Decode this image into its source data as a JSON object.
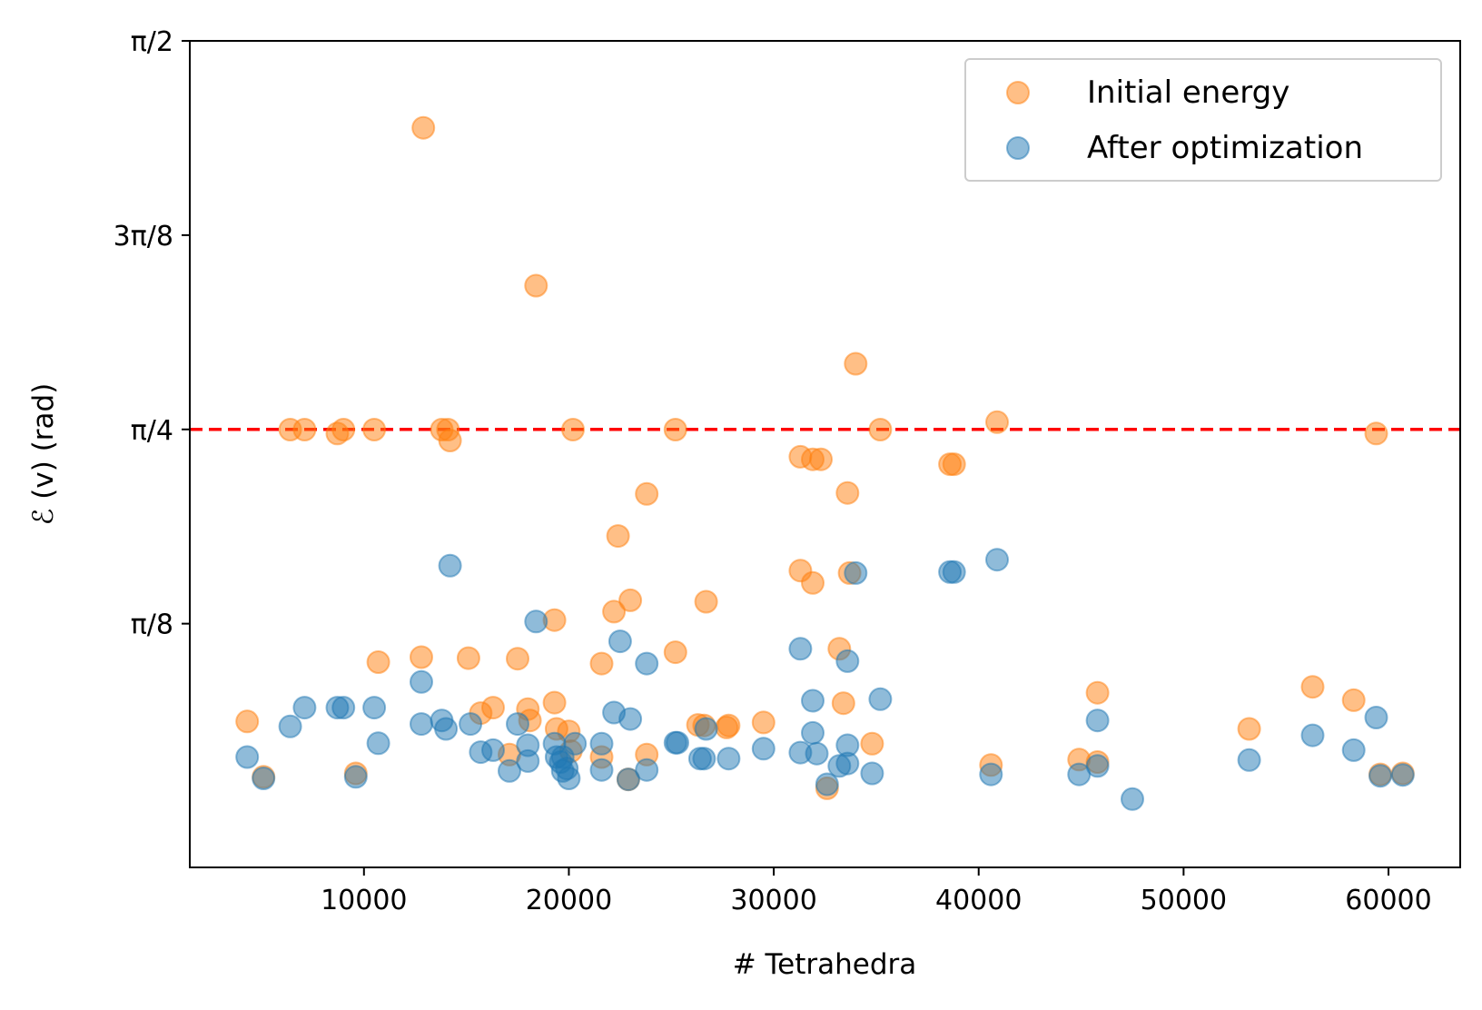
{
  "chart_data": {
    "type": "scatter",
    "title": "",
    "xlabel": "# Tetrahedra",
    "ylabel": "ℰ (v) (rad)",
    "xlim": [
      1500,
      63500
    ],
    "ylim": [
      -0.1,
      1.5708
    ],
    "x_ticks": [
      {
        "value": 10000,
        "label": "10000"
      },
      {
        "value": 20000,
        "label": "20000"
      },
      {
        "value": 30000,
        "label": "30000"
      },
      {
        "value": 40000,
        "label": "40000"
      },
      {
        "value": 50000,
        "label": "50000"
      },
      {
        "value": 60000,
        "label": "60000"
      }
    ],
    "y_ticks": [
      {
        "value": 0.3927,
        "label": "π/8"
      },
      {
        "value": 0.7854,
        "label": "π/4"
      },
      {
        "value": 1.1781,
        "label": "3π/8"
      },
      {
        "value": 1.5708,
        "label": "π/2"
      }
    ],
    "grid": false,
    "legend_position": "upper-right",
    "reference_line": {
      "y": 0.7854,
      "color": "#ff0000",
      "style": "dashed"
    },
    "series": [
      {
        "name": "Initial energy",
        "color": "#ff7f0e",
        "points": [
          [
            12900,
            1.395
          ],
          [
            18400,
            1.076
          ],
          [
            34000,
            0.918
          ],
          [
            40900,
            0.8
          ],
          [
            6400,
            0.785
          ],
          [
            7100,
            0.785
          ],
          [
            8700,
            0.777
          ],
          [
            9000,
            0.785
          ],
          [
            10500,
            0.785
          ],
          [
            13800,
            0.785
          ],
          [
            14100,
            0.785
          ],
          [
            14200,
            0.763
          ],
          [
            20200,
            0.785
          ],
          [
            25200,
            0.785
          ],
          [
            35200,
            0.785
          ],
          [
            59400,
            0.777
          ],
          [
            31300,
            0.73
          ],
          [
            31900,
            0.725
          ],
          [
            32300,
            0.725
          ],
          [
            38600,
            0.715
          ],
          [
            38800,
            0.715
          ],
          [
            33600,
            0.657
          ],
          [
            23800,
            0.655
          ],
          [
            22400,
            0.57
          ],
          [
            31300,
            0.5
          ],
          [
            33700,
            0.495
          ],
          [
            31900,
            0.475
          ],
          [
            23000,
            0.44
          ],
          [
            26700,
            0.437
          ],
          [
            22200,
            0.417
          ],
          [
            19300,
            0.4
          ],
          [
            33200,
            0.342
          ],
          [
            25200,
            0.335
          ],
          [
            12800,
            0.325
          ],
          [
            15100,
            0.323
          ],
          [
            17500,
            0.322
          ],
          [
            10700,
            0.315
          ],
          [
            21600,
            0.312
          ],
          [
            56300,
            0.265
          ],
          [
            45800,
            0.253
          ],
          [
            58300,
            0.238
          ],
          [
            19300,
            0.233
          ],
          [
            33400,
            0.232
          ],
          [
            16300,
            0.223
          ],
          [
            18000,
            0.22
          ],
          [
            15700,
            0.212
          ],
          [
            4300,
            0.195
          ],
          [
            18100,
            0.197
          ],
          [
            26300,
            0.188
          ],
          [
            26600,
            0.187
          ],
          [
            27800,
            0.187
          ],
          [
            27700,
            0.183
          ],
          [
            29500,
            0.193
          ],
          [
            19400,
            0.18
          ],
          [
            53200,
            0.18
          ],
          [
            20000,
            0.175
          ],
          [
            34800,
            0.15
          ],
          [
            23800,
            0.128
          ],
          [
            17100,
            0.128
          ],
          [
            21600,
            0.123
          ],
          [
            20100,
            0.135
          ],
          [
            44900,
            0.118
          ],
          [
            45800,
            0.113
          ],
          [
            40600,
            0.107
          ],
          [
            5100,
            0.083
          ],
          [
            9600,
            0.09
          ],
          [
            59600,
            0.088
          ],
          [
            60700,
            0.09
          ],
          [
            22900,
            0.078
          ],
          [
            32600,
            0.06
          ]
        ]
      },
      {
        "name": "After optimization",
        "color": "#1f77b4",
        "points": [
          [
            14200,
            0.51
          ],
          [
            40900,
            0.522
          ],
          [
            38600,
            0.497
          ],
          [
            38800,
            0.497
          ],
          [
            34000,
            0.495
          ],
          [
            18400,
            0.397
          ],
          [
            22500,
            0.357
          ],
          [
            31300,
            0.342
          ],
          [
            33600,
            0.317
          ],
          [
            23800,
            0.312
          ],
          [
            12800,
            0.275
          ],
          [
            31900,
            0.237
          ],
          [
            35200,
            0.24
          ],
          [
            7100,
            0.223
          ],
          [
            8700,
            0.223
          ],
          [
            9000,
            0.223
          ],
          [
            10500,
            0.223
          ],
          [
            22200,
            0.213
          ],
          [
            59400,
            0.203
          ],
          [
            23000,
            0.2
          ],
          [
            45800,
            0.197
          ],
          [
            13800,
            0.197
          ],
          [
            15200,
            0.19
          ],
          [
            17500,
            0.19
          ],
          [
            12800,
            0.19
          ],
          [
            6400,
            0.185
          ],
          [
            14000,
            0.18
          ],
          [
            26700,
            0.18
          ],
          [
            31900,
            0.172
          ],
          [
            56300,
            0.167
          ],
          [
            10700,
            0.151
          ],
          [
            25200,
            0.152
          ],
          [
            25300,
            0.152
          ],
          [
            19300,
            0.15
          ],
          [
            20300,
            0.15
          ],
          [
            21600,
            0.15
          ],
          [
            18000,
            0.147
          ],
          [
            33600,
            0.147
          ],
          [
            58300,
            0.137
          ],
          [
            29500,
            0.14
          ],
          [
            16300,
            0.137
          ],
          [
            15700,
            0.133
          ],
          [
            31300,
            0.132
          ],
          [
            32100,
            0.13
          ],
          [
            19400,
            0.123
          ],
          [
            19700,
            0.123
          ],
          [
            4300,
            0.123
          ],
          [
            26400,
            0.12
          ],
          [
            26600,
            0.12
          ],
          [
            27800,
            0.12
          ],
          [
            53200,
            0.117
          ],
          [
            18000,
            0.115
          ],
          [
            19600,
            0.113
          ],
          [
            33600,
            0.11
          ],
          [
            33200,
            0.105
          ],
          [
            45800,
            0.105
          ],
          [
            19900,
            0.1
          ],
          [
            17100,
            0.095
          ],
          [
            19700,
            0.095
          ],
          [
            21600,
            0.097
          ],
          [
            23800,
            0.097
          ],
          [
            34800,
            0.09
          ],
          [
            40600,
            0.088
          ],
          [
            44900,
            0.088
          ],
          [
            59600,
            0.085
          ],
          [
            60700,
            0.087
          ],
          [
            5100,
            0.08
          ],
          [
            9600,
            0.083
          ],
          [
            20000,
            0.08
          ],
          [
            22900,
            0.078
          ],
          [
            32600,
            0.068
          ],
          [
            47500,
            0.038
          ]
        ]
      }
    ]
  }
}
